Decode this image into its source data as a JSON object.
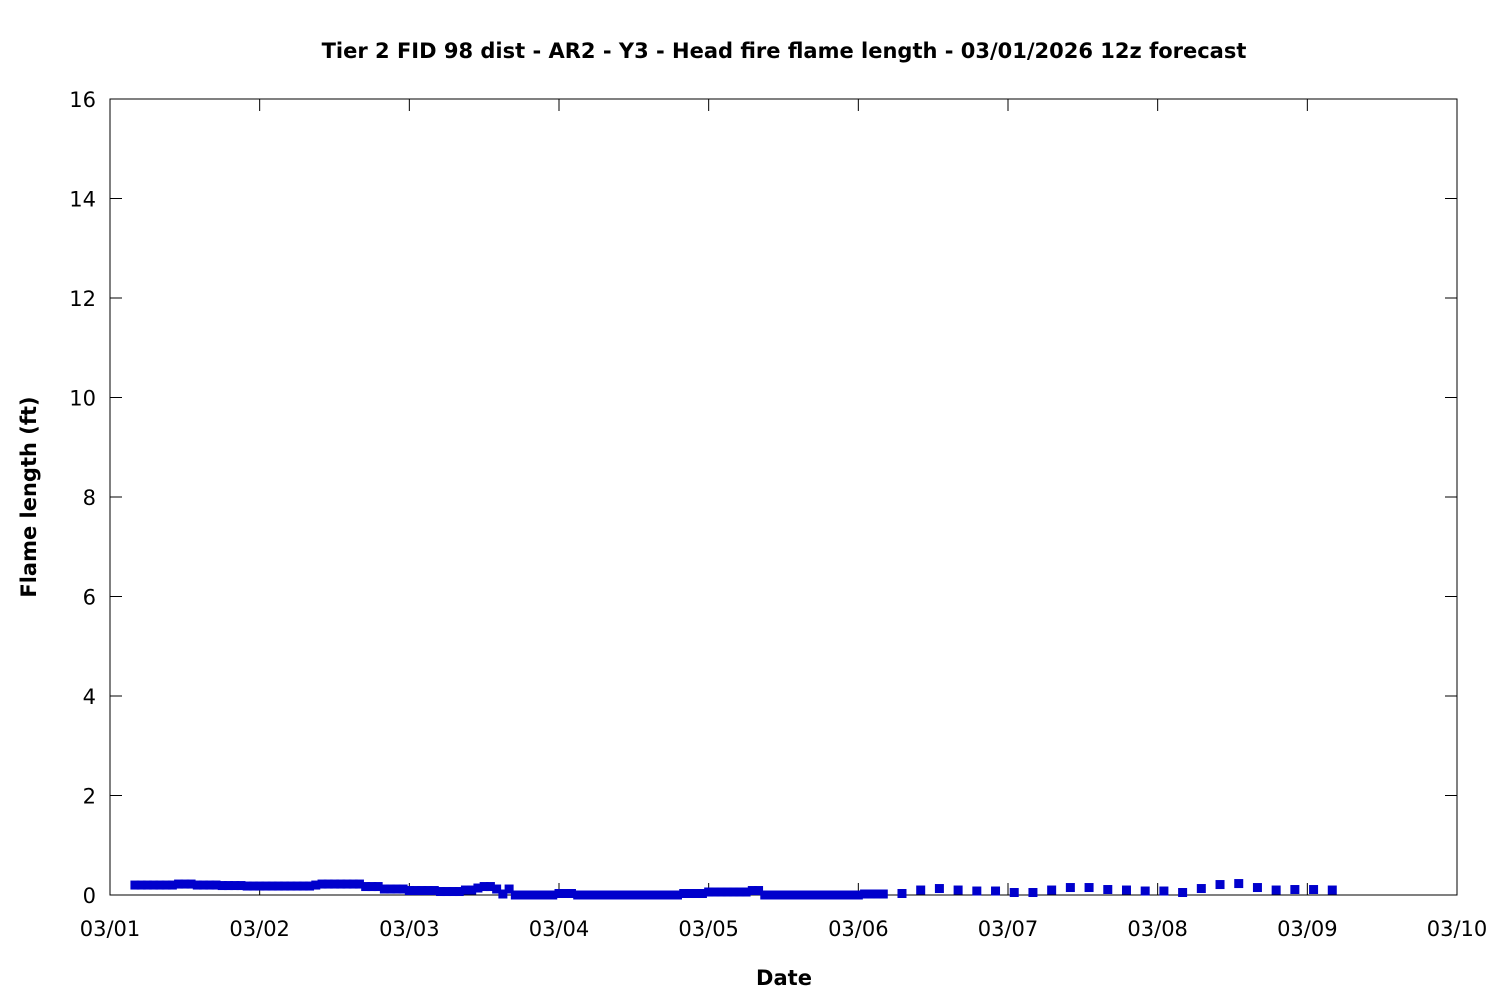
{
  "chart_data": {
    "type": "scatter",
    "title": "Tier 2 FID 98 dist - AR2 - Y3 - Head fire flame length - 03/01/2026 12z forecast",
    "xlabel": "Date",
    "ylabel": "Flame length (ft)",
    "xlim": [
      "03/01 00:00",
      "03/10 00:00"
    ],
    "ylim": [
      0,
      16
    ],
    "xticks": [
      "03/01",
      "03/02",
      "03/03",
      "03/04",
      "03/05",
      "03/06",
      "03/07",
      "03/08",
      "03/09",
      "03/10"
    ],
    "yticks": [
      0,
      2,
      4,
      6,
      8,
      10,
      12,
      14,
      16
    ],
    "grid": false,
    "marker": "square",
    "color": "#0000cc",
    "points": [
      [
        "03/01 04:00",
        0.2
      ],
      [
        "03/01 05:00",
        0.2
      ],
      [
        "03/01 06:00",
        0.2
      ],
      [
        "03/01 07:00",
        0.2
      ],
      [
        "03/01 08:00",
        0.2
      ],
      [
        "03/01 09:00",
        0.2
      ],
      [
        "03/01 10:00",
        0.2
      ],
      [
        "03/01 11:00",
        0.22
      ],
      [
        "03/01 12:00",
        0.22
      ],
      [
        "03/01 13:00",
        0.22
      ],
      [
        "03/01 14:00",
        0.2
      ],
      [
        "03/01 15:00",
        0.2
      ],
      [
        "03/01 16:00",
        0.2
      ],
      [
        "03/01 17:00",
        0.2
      ],
      [
        "03/01 18:00",
        0.19
      ],
      [
        "03/01 19:00",
        0.19
      ],
      [
        "03/01 20:00",
        0.19
      ],
      [
        "03/01 21:00",
        0.19
      ],
      [
        "03/01 22:00",
        0.18
      ],
      [
        "03/01 23:00",
        0.18
      ],
      [
        "03/02 00:00",
        0.18
      ],
      [
        "03/02 01:00",
        0.18
      ],
      [
        "03/02 02:00",
        0.18
      ],
      [
        "03/02 03:00",
        0.18
      ],
      [
        "03/02 04:00",
        0.18
      ],
      [
        "03/02 05:00",
        0.18
      ],
      [
        "03/02 06:00",
        0.18
      ],
      [
        "03/02 07:00",
        0.18
      ],
      [
        "03/02 08:00",
        0.18
      ],
      [
        "03/02 09:00",
        0.2
      ],
      [
        "03/02 10:00",
        0.22
      ],
      [
        "03/02 11:00",
        0.22
      ],
      [
        "03/02 12:00",
        0.22
      ],
      [
        "03/02 13:00",
        0.22
      ],
      [
        "03/02 14:00",
        0.22
      ],
      [
        "03/02 15:00",
        0.22
      ],
      [
        "03/02 16:00",
        0.22
      ],
      [
        "03/02 17:00",
        0.17
      ],
      [
        "03/02 18:00",
        0.17
      ],
      [
        "03/02 19:00",
        0.17
      ],
      [
        "03/02 20:00",
        0.12
      ],
      [
        "03/02 21:00",
        0.12
      ],
      [
        "03/02 22:00",
        0.12
      ],
      [
        "03/02 23:00",
        0.12
      ],
      [
        "03/03 00:00",
        0.09
      ],
      [
        "03/03 01:00",
        0.09
      ],
      [
        "03/03 02:00",
        0.09
      ],
      [
        "03/03 03:00",
        0.09
      ],
      [
        "03/03 04:00",
        0.09
      ],
      [
        "03/03 05:00",
        0.07
      ],
      [
        "03/03 06:00",
        0.07
      ],
      [
        "03/03 07:00",
        0.07
      ],
      [
        "03/03 08:00",
        0.07
      ],
      [
        "03/03 09:00",
        0.1
      ],
      [
        "03/03 10:00",
        0.1
      ],
      [
        "03/03 11:00",
        0.14
      ],
      [
        "03/03 12:00",
        0.17
      ],
      [
        "03/03 13:00",
        0.17
      ],
      [
        "03/03 14:00",
        0.12
      ],
      [
        "03/03 15:00",
        0.02
      ],
      [
        "03/03 16:00",
        0.12
      ],
      [
        "03/03 17:00",
        0
      ],
      [
        "03/03 18:00",
        0
      ],
      [
        "03/03 19:00",
        0
      ],
      [
        "03/03 20:00",
        0
      ],
      [
        "03/03 21:00",
        0
      ],
      [
        "03/03 22:00",
        0
      ],
      [
        "03/03 23:00",
        0
      ],
      [
        "03/04 00:00",
        0.03
      ],
      [
        "03/04 01:00",
        0.03
      ],
      [
        "03/04 02:00",
        0.03
      ],
      [
        "03/04 03:00",
        0
      ],
      [
        "03/04 04:00",
        0
      ],
      [
        "03/04 05:00",
        0
      ],
      [
        "03/04 06:00",
        0
      ],
      [
        "03/04 07:00",
        0
      ],
      [
        "03/04 08:00",
        0
      ],
      [
        "03/04 09:00",
        0
      ],
      [
        "03/04 10:00",
        0
      ],
      [
        "03/04 11:00",
        0
      ],
      [
        "03/04 12:00",
        0
      ],
      [
        "03/04 13:00",
        0
      ],
      [
        "03/04 14:00",
        0
      ],
      [
        "03/04 15:00",
        0
      ],
      [
        "03/04 16:00",
        0
      ],
      [
        "03/04 17:00",
        0
      ],
      [
        "03/04 18:00",
        0
      ],
      [
        "03/04 19:00",
        0
      ],
      [
        "03/04 20:00",
        0.03
      ],
      [
        "03/04 21:00",
        0.03
      ],
      [
        "03/04 22:00",
        0.03
      ],
      [
        "03/04 23:00",
        0.03
      ],
      [
        "03/05 00:00",
        0.06
      ],
      [
        "03/05 01:00",
        0.06
      ],
      [
        "03/05 02:00",
        0.06
      ],
      [
        "03/05 03:00",
        0.06
      ],
      [
        "03/05 04:00",
        0.06
      ],
      [
        "03/05 05:00",
        0.06
      ],
      [
        "03/05 06:00",
        0.06
      ],
      [
        "03/05 07:00",
        0.09
      ],
      [
        "03/05 08:00",
        0.09
      ],
      [
        "03/05 09:00",
        0
      ],
      [
        "03/05 10:00",
        0
      ],
      [
        "03/05 11:00",
        0
      ],
      [
        "03/05 12:00",
        0
      ],
      [
        "03/05 13:00",
        0
      ],
      [
        "03/05 14:00",
        0
      ],
      [
        "03/05 15:00",
        0
      ],
      [
        "03/05 16:00",
        0
      ],
      [
        "03/05 17:00",
        0
      ],
      [
        "03/05 18:00",
        0
      ],
      [
        "03/05 19:00",
        0
      ],
      [
        "03/05 20:00",
        0
      ],
      [
        "03/05 21:00",
        0
      ],
      [
        "03/05 22:00",
        0
      ],
      [
        "03/05 23:00",
        0
      ],
      [
        "03/06 00:00",
        0
      ],
      [
        "03/06 01:00",
        0.02
      ],
      [
        "03/06 02:00",
        0.02
      ],
      [
        "03/06 03:00",
        0.02
      ],
      [
        "03/06 04:00",
        0.02
      ],
      [
        "03/06 07:00",
        0.03
      ],
      [
        "03/06 10:00",
        0.1
      ],
      [
        "03/06 13:00",
        0.13
      ],
      [
        "03/06 16:00",
        0.1
      ],
      [
        "03/06 19:00",
        0.08
      ],
      [
        "03/06 22:00",
        0.08
      ],
      [
        "03/07 01:00",
        0.05
      ],
      [
        "03/07 04:00",
        0.05
      ],
      [
        "03/07 07:00",
        0.1
      ],
      [
        "03/07 10:00",
        0.15
      ],
      [
        "03/07 13:00",
        0.15
      ],
      [
        "03/07 16:00",
        0.11
      ],
      [
        "03/07 19:00",
        0.1
      ],
      [
        "03/07 22:00",
        0.08
      ],
      [
        "03/08 01:00",
        0.08
      ],
      [
        "03/08 04:00",
        0.05
      ],
      [
        "03/08 07:00",
        0.13
      ],
      [
        "03/08 10:00",
        0.21
      ],
      [
        "03/08 13:00",
        0.23
      ],
      [
        "03/08 16:00",
        0.15
      ],
      [
        "03/08 19:00",
        0.1
      ],
      [
        "03/08 22:00",
        0.11
      ],
      [
        "03/09 01:00",
        0.11
      ],
      [
        "03/09 04:00",
        0.1
      ]
    ]
  }
}
